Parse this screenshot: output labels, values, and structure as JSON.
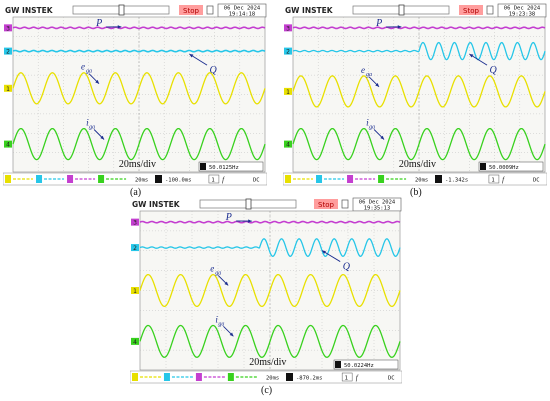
{
  "colors": {
    "screen_bg": "#f7f7f4",
    "grid": "#b5b5b5",
    "ch1": "#e8e000",
    "ch2": "#26c6e8",
    "ch3": "#c43fd0",
    "ch4": "#38d11e",
    "ch4_dark": "#2a9a15",
    "stop_bg": "#ff9d9d",
    "label": "#1b2d8f"
  },
  "scope_ui": {
    "brand": "GW INSTEK",
    "stop": "Stop",
    "trigger_coupling": "DC",
    "trigger_source": "1",
    "trigger_symbol": "f",
    "ch_marker_p": "P",
    "ch_marker_q": "Q",
    "ch_marker_e": "e",
    "ch_marker_i": "i"
  },
  "chart_data": [
    {
      "type": "line",
      "panel": "(a)",
      "date": "06 Dec 2024",
      "time": "19:14:18",
      "timebase": "20ms",
      "offset": "-100.0ms",
      "frequency": "50.0125Hz",
      "time_div_label": "20ms/div",
      "cycles": 8,
      "annotations": {
        "p": "P",
        "q": "Q",
        "e": "e",
        "e_sub": "ga",
        "i": "i",
        "i_sub": "ga"
      },
      "series": [
        {
          "name": "P",
          "kind": "dc",
          "level": 0.93
        },
        {
          "name": "Q",
          "kind": "dc",
          "level": 0.78
        },
        {
          "name": "e_ga",
          "kind": "sine",
          "center": 0.54,
          "amplitude": 0.1
        },
        {
          "name": "i_ga",
          "kind": "sine",
          "center": 0.18,
          "amplitude": 0.1
        }
      ]
    },
    {
      "type": "line",
      "panel": "(b)",
      "date": "06 Dec 2024",
      "time": "19:23:38",
      "timebase": "20ms",
      "offset": "-1.342s",
      "frequency": "50.0009Hz",
      "time_div_label": "20ms/div",
      "cycles": 8,
      "annotations": {
        "p": "P",
        "q": "Q",
        "e": "e",
        "e_sub": "ga",
        "i": "i",
        "i_sub": "ga"
      },
      "series": [
        {
          "name": "P",
          "kind": "dc",
          "level": 0.93
        },
        {
          "name": "Q",
          "kind": "dc_then_ripple",
          "level": 0.78,
          "switch_at": 0.5,
          "ripple": 0.055,
          "ripple_cycles": 8
        },
        {
          "name": "e_ga",
          "kind": "sine",
          "center": 0.52,
          "amplitude": 0.1
        },
        {
          "name": "i_ga",
          "kind": "sine",
          "center": 0.18,
          "amplitude": 0.1
        }
      ]
    },
    {
      "type": "line",
      "panel": "(c)",
      "date": "06 Dec 2024",
      "time": "19:35:13",
      "timebase": "20ms",
      "offset": "-870.2ms",
      "frequency": "50.0224Hz",
      "time_div_label": "20ms/div",
      "cycles": 8,
      "annotations": {
        "p": "P",
        "q": "Q",
        "e": "e",
        "e_sub": "ga",
        "i": "i",
        "i_sub": "ga"
      },
      "series": [
        {
          "name": "P",
          "kind": "dc",
          "level": 0.93
        },
        {
          "name": "Q",
          "kind": "dc_then_ripple",
          "level": 0.77,
          "switch_at": 0.46,
          "ripple": 0.055,
          "ripple_cycles": 8
        },
        {
          "name": "e_ga",
          "kind": "sine",
          "center": 0.5,
          "amplitude": 0.1
        },
        {
          "name": "i_ga",
          "kind": "sine",
          "center": 0.18,
          "amplitude": 0.1
        }
      ]
    }
  ]
}
